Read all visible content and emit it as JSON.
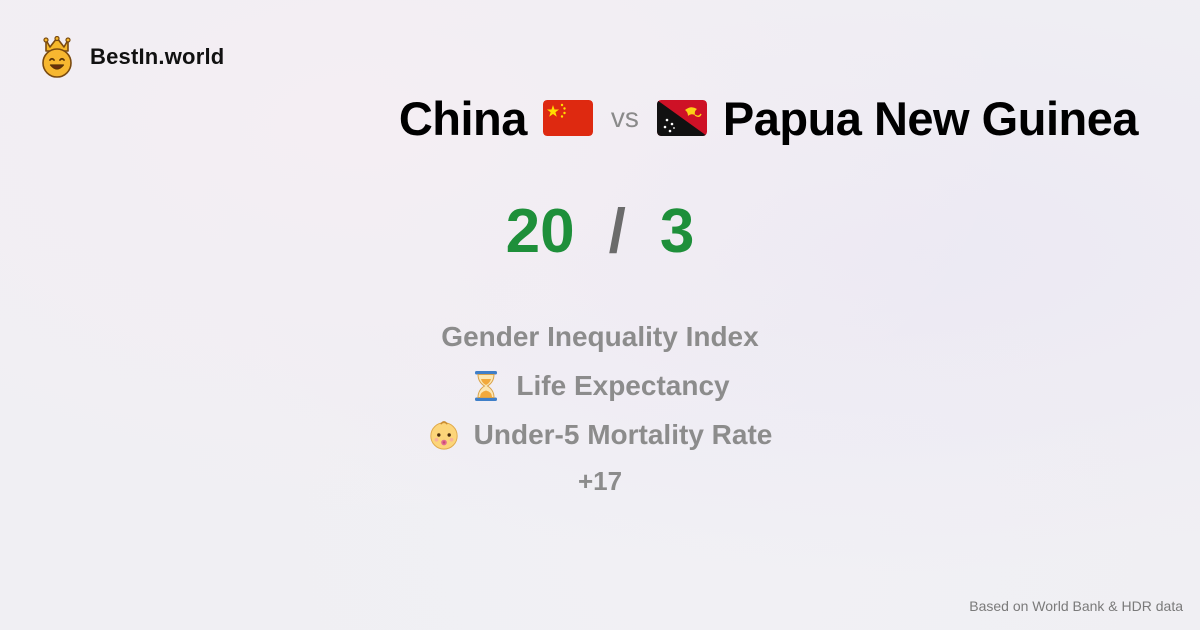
{
  "brand": {
    "name": "BestIn.world",
    "logo_icon": "crown-smiley-icon"
  },
  "title": {
    "country_a": "China",
    "country_a_flag": "china-flag-icon",
    "vs": "vs",
    "country_b": "Papua New Guinea",
    "country_b_flag": "papua-new-guinea-flag-icon"
  },
  "score": {
    "a": "20",
    "separator": "/",
    "b": "3",
    "color": "#1e8f3a"
  },
  "metrics": [
    {
      "label": "Gender Inequality Index",
      "icon": ""
    },
    {
      "label": "Life Expectancy",
      "icon": "hourglass-icon"
    },
    {
      "label": "Under-5 Mortality Rate",
      "icon": "baby-icon"
    }
  ],
  "more": "+17",
  "footer": "Based on World Bank & HDR data"
}
